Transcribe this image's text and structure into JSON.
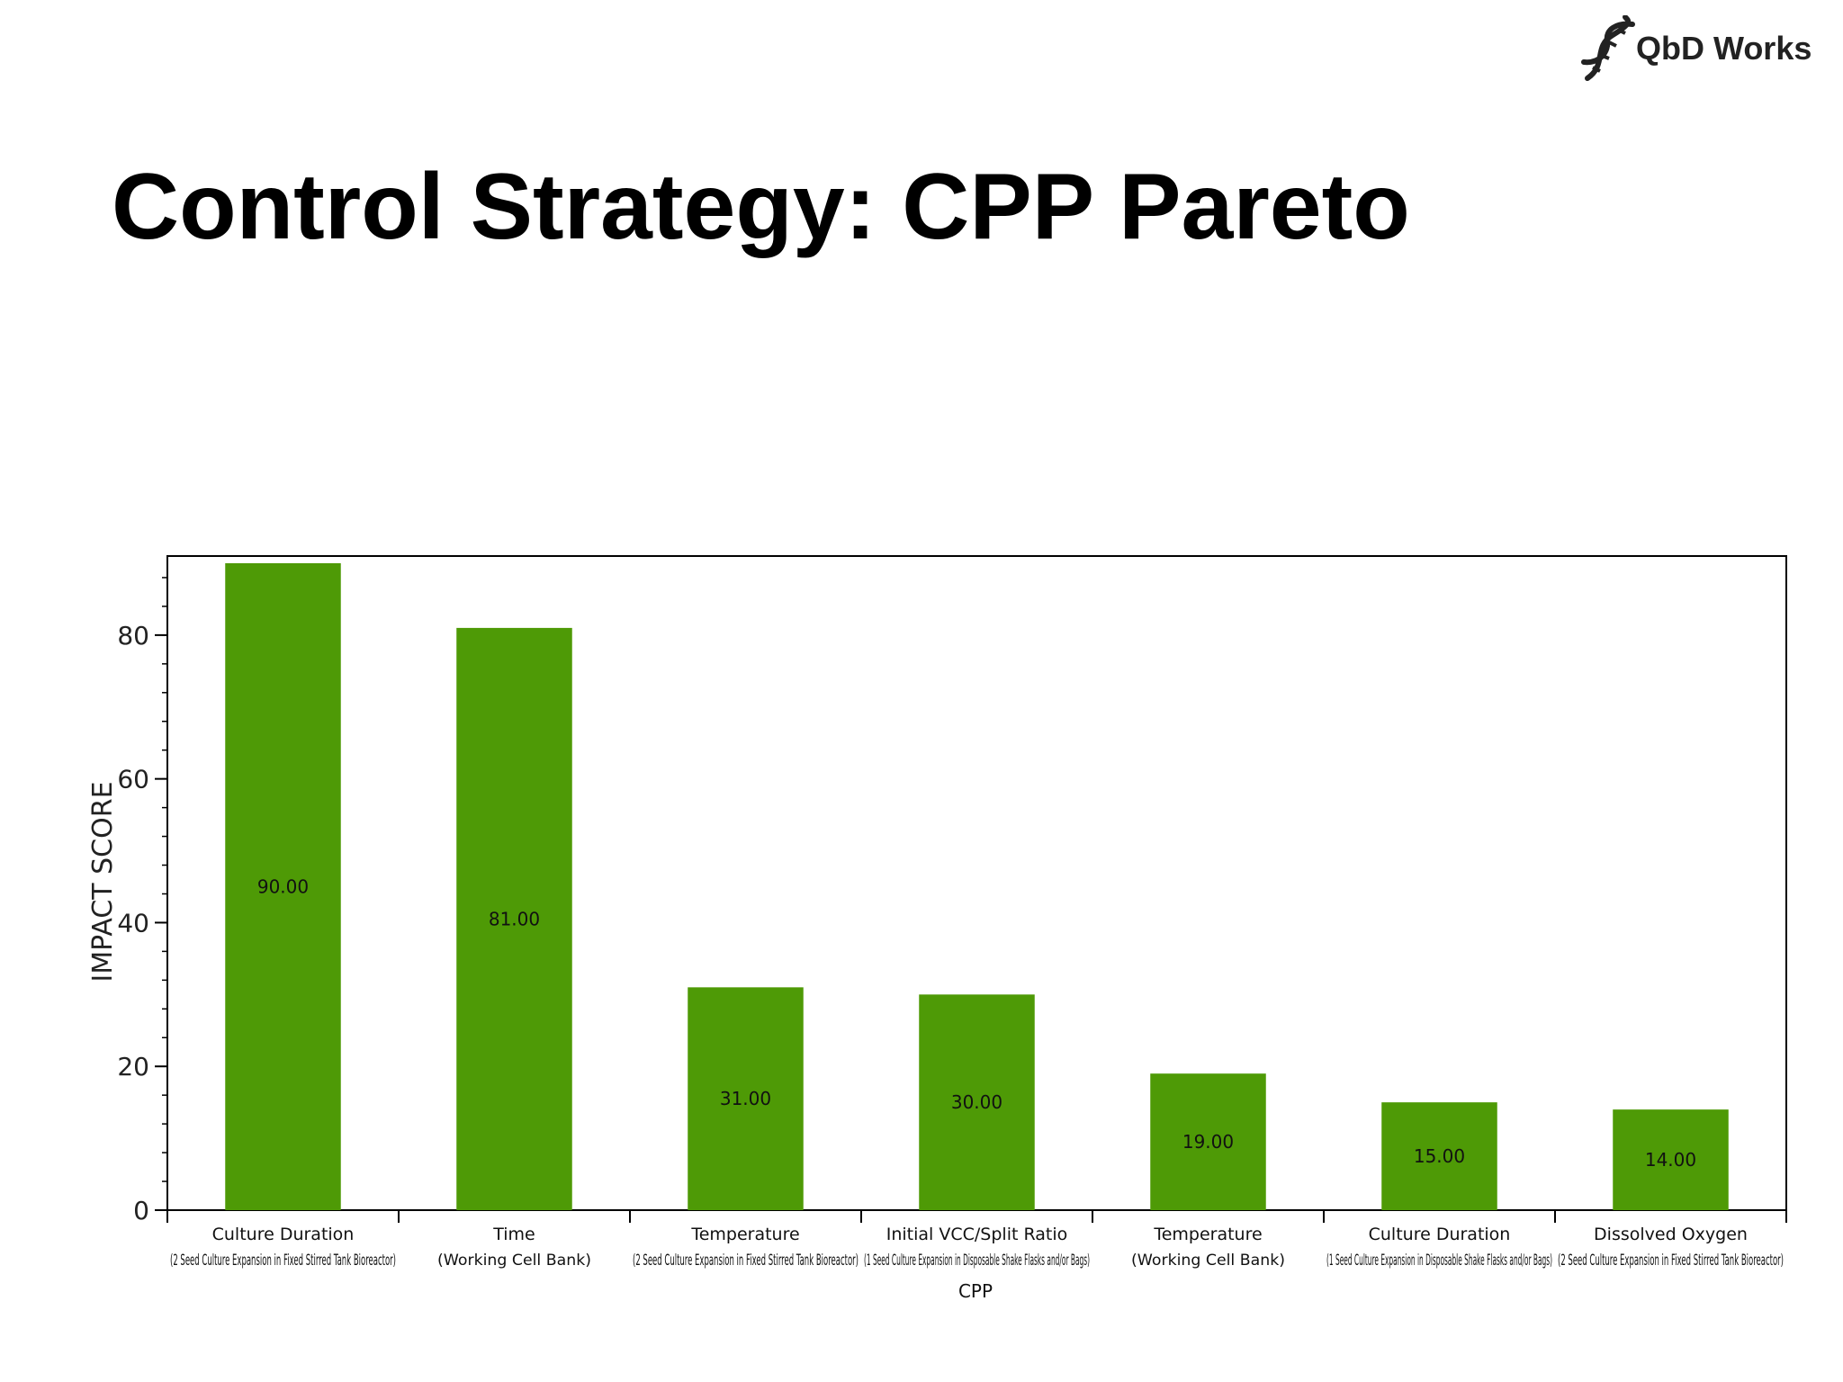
{
  "slide": {
    "title": "Control Strategy: CPP Pareto"
  },
  "logo": {
    "text": "QbD Works",
    "icon": "dna-helix-icon"
  },
  "colors": {
    "bar": "#4e9a06",
    "axis": "#000000",
    "title": "#000000"
  },
  "chart_data": {
    "type": "bar",
    "xlabel": "CPP",
    "ylabel": "IMPACT SCORE",
    "ylim": [
      0,
      91
    ],
    "yticks": [
      0,
      20,
      40,
      60,
      80
    ],
    "grid": false,
    "categories": [
      "Culture Duration (2 Seed Culture Expansion in Fixed Stirred Tank Bioreactor)",
      "Time (Working Cell Bank)",
      "Temperature (2 Seed Culture Expansion in Fixed Stirred Tank Bioreactor)",
      "Initial VCC/Split Ratio (1 Seed Culture Expansion in Disposable Shake Flasks and/or Bags)",
      "Temperature (Working Cell Bank)",
      "Culture Duration (1 Seed Culture Expansion in Disposable Shake Flasks and/or Bags)",
      "Dissolved Oxygen (2 Seed Culture Expansion in Fixed Stirred Tank Bioreactor)"
    ],
    "values": [
      90,
      81,
      31,
      30,
      19,
      15,
      14
    ],
    "data_labels": [
      "90.00",
      "81.00",
      "31.00",
      "30.00",
      "19.00",
      "15.00",
      "14.00"
    ],
    "tick_labels": [
      {
        "line1": "Culture Duration",
        "line2": "(2 Seed Culture Expansion in Fixed Stirred Tank Bioreactor)"
      },
      {
        "line1": "Time",
        "line2": "(Working Cell Bank)"
      },
      {
        "line1": "Temperature",
        "line2": "(2 Seed Culture Expansion in Fixed Stirred Tank Bioreactor)"
      },
      {
        "line1": "Initial VCC/Split Ratio",
        "line2": "(1 Seed Culture Expansion in Disposable Shake Flasks and/or Bags)"
      },
      {
        "line1": "Temperature",
        "line2": "(Working Cell Bank)"
      },
      {
        "line1": "Culture Duration",
        "line2": "(1 Seed Culture Expansion in Disposable Shake Flasks and/or Bags)"
      },
      {
        "line1": "Dissolved Oxygen",
        "line2": "(2 Seed Culture Expansion in Fixed Stirred Tank Bioreactor)"
      }
    ]
  }
}
